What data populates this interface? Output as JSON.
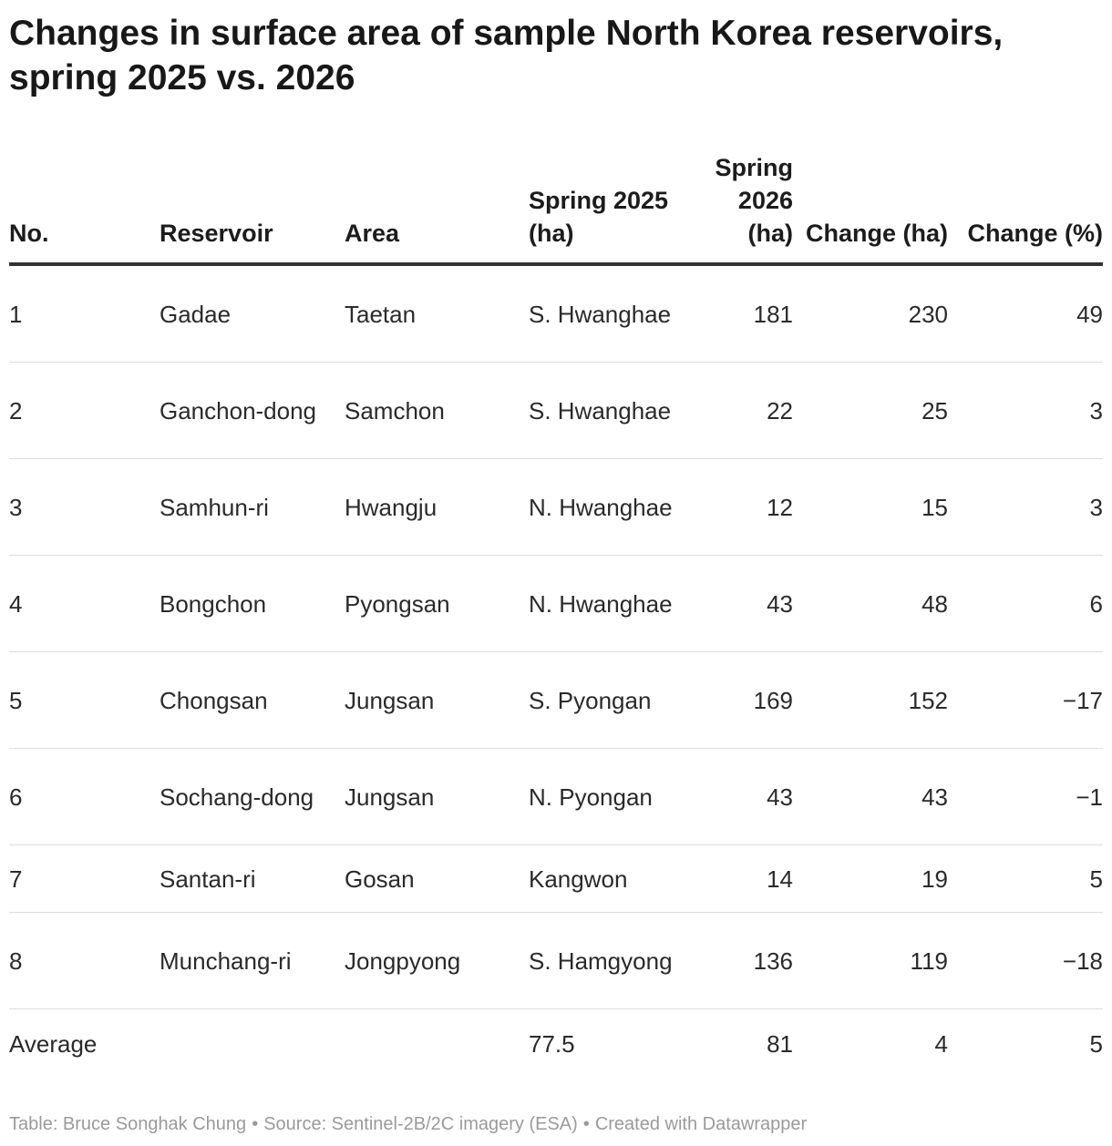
{
  "title": "Changes in surface area of sample North Korea reservoirs, spring 2025 vs. 2026",
  "columns": {
    "no": "No.",
    "reservoir": "Reservoir",
    "area": "Area",
    "spring2025": "Spring 2025 (ha)",
    "spring2026": "Spring 2026 (ha)",
    "change_ha": "Change (ha)",
    "change_pct": "Change (%)"
  },
  "rows": [
    {
      "no": "1",
      "reservoir": "Gadae",
      "area": "Taetan",
      "spring2025": "S. Hwanghae",
      "spring2026": "181",
      "change_ha": "230",
      "change_pct": "49"
    },
    {
      "no": "2",
      "reservoir": "Ganchon-dong",
      "area": "Samchon",
      "spring2025": "S. Hwanghae",
      "spring2026": "22",
      "change_ha": "25",
      "change_pct": "3"
    },
    {
      "no": "3",
      "reservoir": "Samhun-ri",
      "area": "Hwangju",
      "spring2025": "N. Hwanghae",
      "spring2026": "12",
      "change_ha": "15",
      "change_pct": "3"
    },
    {
      "no": "4",
      "reservoir": "Bongchon",
      "area": "Pyongsan",
      "spring2025": "N. Hwanghae",
      "spring2026": "43",
      "change_ha": "48",
      "change_pct": "6"
    },
    {
      "no": "5",
      "reservoir": "Chongsan",
      "area": "Jungsan",
      "spring2025": "S. Pyongan",
      "spring2026": "169",
      "change_ha": "152",
      "change_pct": "−17"
    },
    {
      "no": "6",
      "reservoir": "Sochang-dong",
      "area": "Jungsan",
      "spring2025": "N. Pyongan",
      "spring2026": "43",
      "change_ha": "43",
      "change_pct": "−1"
    },
    {
      "no": "7",
      "reservoir": "Santan-ri",
      "area": "Gosan",
      "spring2025": "Kangwon",
      "spring2026": "14",
      "change_ha": "19",
      "change_pct": "5"
    },
    {
      "no": "8",
      "reservoir": "Munchang-ri",
      "area": "Jongpyong",
      "spring2025": "S. Hamgyong",
      "spring2026": "136",
      "change_ha": "119",
      "change_pct": "−18"
    }
  ],
  "average": {
    "label": "Average",
    "spring2025": "77.5",
    "spring2026": "81",
    "change_ha": "4",
    "change_pct": "5"
  },
  "footer": {
    "table_credit": "Table: Bruce Songhak Chung",
    "separator": "•",
    "source": "Source: Sentinel-2B/2C imagery (ESA)",
    "created": "Created with Datawrapper"
  },
  "chart_data": {
    "type": "table",
    "title": "Changes in surface area of sample North Korea reservoirs, spring 2025 vs. 2026",
    "headers": [
      "No.",
      "Reservoir",
      "Area",
      "Spring 2025 (ha)",
      "Spring 2026 (ha)",
      "Change (ha)",
      "Change (%)"
    ],
    "rows": [
      [
        "1",
        "Gadae",
        "Taetan",
        "S. Hwanghae",
        "181",
        "230",
        "49"
      ],
      [
        "2",
        "Ganchon-dong",
        "Samchon",
        "S. Hwanghae",
        "22",
        "25",
        "3"
      ],
      [
        "3",
        "Samhun-ri",
        "Hwangju",
        "N. Hwanghae",
        "12",
        "15",
        "3"
      ],
      [
        "4",
        "Bongchon",
        "Pyongsan",
        "N. Hwanghae",
        "43",
        "48",
        "6"
      ],
      [
        "5",
        "Chongsan",
        "Jungsan",
        "S. Pyongan",
        "169",
        "152",
        "−17"
      ],
      [
        "6",
        "Sochang-dong",
        "Jungsan",
        "N. Pyongan",
        "43",
        "43",
        "−1"
      ],
      [
        "7",
        "Santan-ri",
        "Gosan",
        "Kangwon",
        "14",
        "19",
        "5"
      ],
      [
        "8",
        "Munchang-ri",
        "Jongpyong",
        "S. Hamgyong",
        "136",
        "119",
        "−18"
      ],
      [
        "Average",
        "",
        "",
        "77.5",
        "81",
        "4",
        "5"
      ]
    ]
  }
}
